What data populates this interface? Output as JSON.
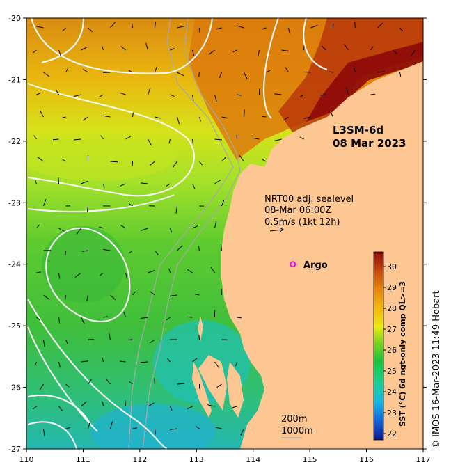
{
  "map": {
    "title_line1": "L3SM-6d",
    "title_line2": "08 Mar 2023",
    "info_line1": "NRT00 adj. sealevel",
    "info_line2": "08-Mar 06:00Z",
    "info_line3": "0.5m/s (1kt 12h)",
    "argo_label": "Argo",
    "depth_label_1": "200m",
    "depth_label_2": "1000m",
    "credit": "© IMOS 16-Mar-2023 11:49 Hobart",
    "lon_ticks": [
      "110",
      "111",
      "112",
      "113",
      "114",
      "115",
      "116",
      "117"
    ],
    "lat_ticks": [
      "-20",
      "-21",
      "-22",
      "-23",
      "-24",
      "-25",
      "-26",
      "-27"
    ],
    "extent": {
      "lon": [
        110,
        117
      ],
      "lat": [
        -27,
        -20
      ]
    },
    "argo_position": {
      "lon": 114.7,
      "lat": -24.0
    },
    "colors": {
      "land": "#fdc794",
      "argo": "#ff00ff",
      "contour": "#ffffff"
    }
  },
  "colorbar": {
    "label": "SST (°C) 6d ngt-only comp QL>=3",
    "ticks": [
      "22",
      "23",
      "24",
      "25",
      "26",
      "27",
      "28",
      "29",
      "30"
    ],
    "range": [
      21.7,
      30.7
    ],
    "stops": [
      "#0b1a8c",
      "#1565d8",
      "#18b7e6",
      "#19d29a",
      "#1cc43a",
      "#7ed61e",
      "#eaea14",
      "#f5b80e",
      "#e7860c",
      "#c64a0b",
      "#8c0a08"
    ]
  }
}
